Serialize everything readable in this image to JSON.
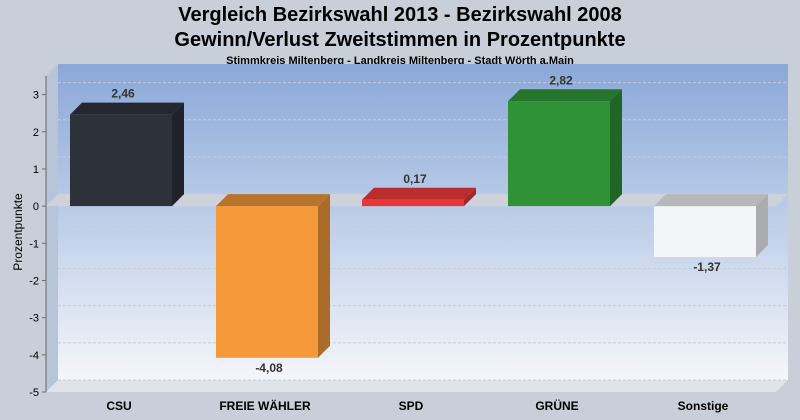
{
  "chart_data": {
    "type": "bar",
    "title": "Vergleich Bezirkswahl 2013 - Bezirkswahl 2008",
    "subtitle_line2": "Gewinn/Verlust Zweitstimmen in Prozentpunkte",
    "subtitle": "Stimmkreis Miltenberg - Landkreis Miltenberg - Stadt Wörth a.Main",
    "ylabel": "Prozentpunkte",
    "xlabel": "",
    "ylim": [
      -5,
      3.5
    ],
    "yticks": [
      3,
      2,
      1,
      0,
      -1,
      -2,
      -3,
      -4,
      -5
    ],
    "categories": [
      "CSU",
      "FREIE WÄHLER",
      "SPD",
      "GRÜNE",
      "Sonstige"
    ],
    "values": [
      2.46,
      -4.08,
      0.17,
      2.82,
      -1.37
    ],
    "value_labels": [
      "2,46",
      "-4,08",
      "0,17",
      "2,82",
      "-1,37"
    ],
    "colors": [
      "#2d3139",
      "#f59a3b",
      "#e8383a",
      "#2f9236",
      "#f4f5f8"
    ],
    "grid": true,
    "legend": "none"
  }
}
